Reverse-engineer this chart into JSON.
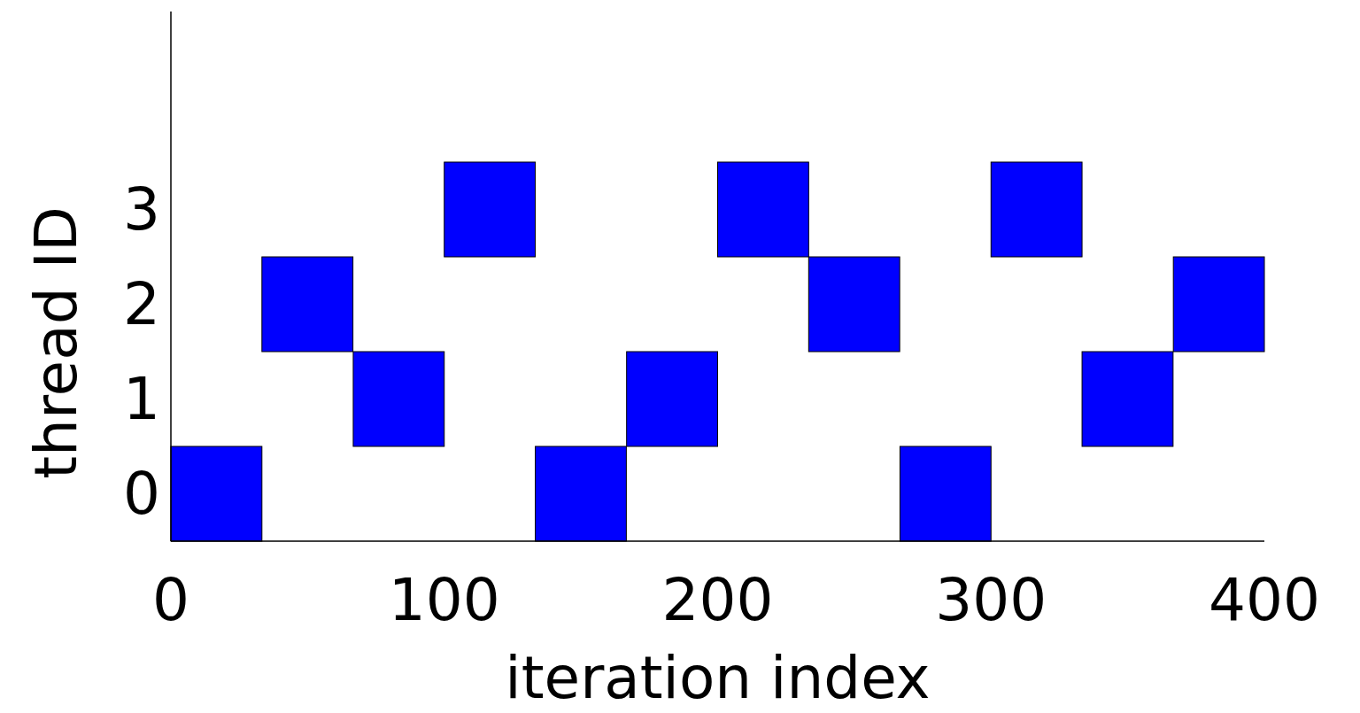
{
  "chart_data": {
    "type": "bar",
    "orientation": "horizontal",
    "xlabel": "iteration index",
    "ylabel": "thread ID",
    "categories": [
      "3",
      "2",
      "1",
      "0"
    ],
    "xlim": [
      0,
      400
    ],
    "xticks": [
      0,
      100,
      200,
      300,
      400
    ],
    "series": [
      {
        "color": "#0000ff",
        "values": [
          33.3,
          33.3,
          33.3,
          33.3
        ],
        "base": [
          100,
          33.3,
          66.7,
          0
        ]
      },
      {
        "color": "#0000ff",
        "values": [
          33.3,
          33.3,
          33.3,
          33.3
        ],
        "base": [
          200,
          233.3,
          166.7,
          133.3
        ]
      },
      {
        "color": "#0000ff",
        "values": [
          33.3,
          33.3,
          33.3,
          33.3
        ],
        "base": [
          300,
          366.7,
          333.3,
          266.7
        ]
      }
    ]
  }
}
